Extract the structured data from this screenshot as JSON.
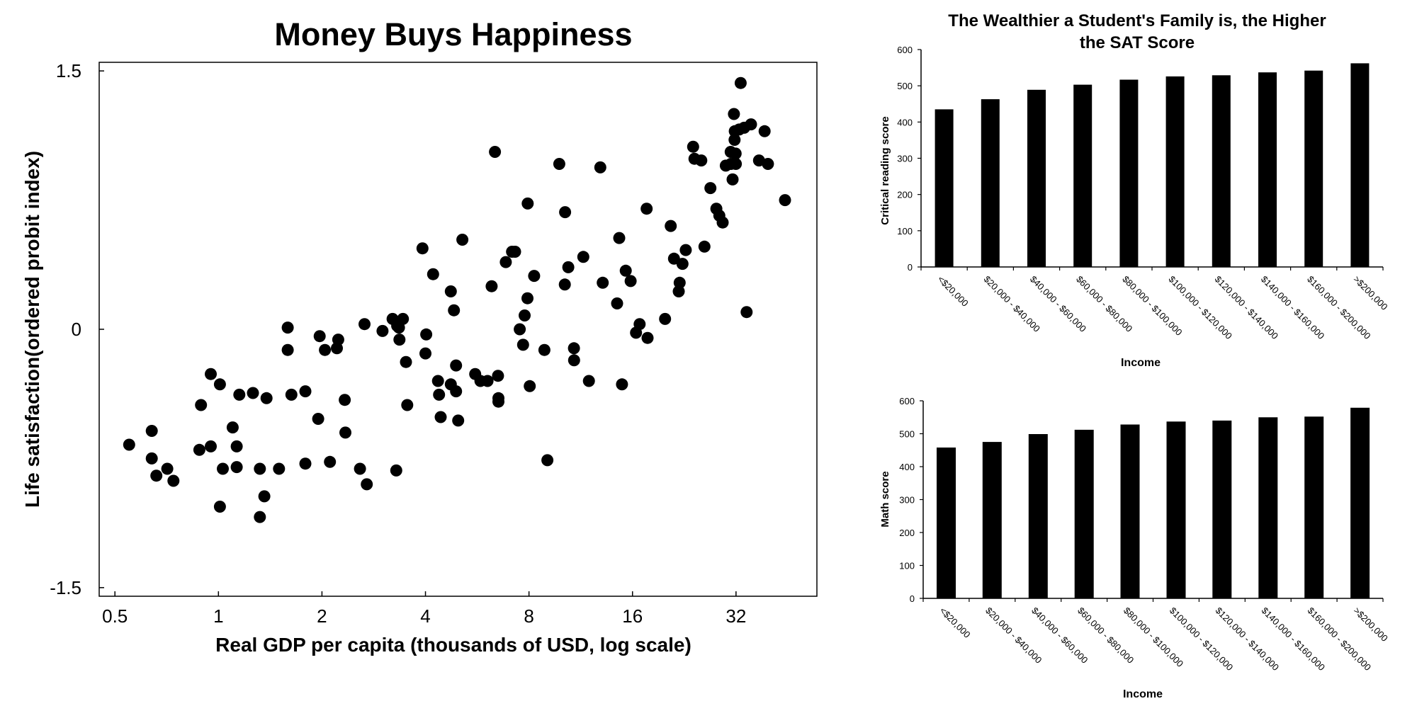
{
  "chart_data": [
    {
      "type": "scatter",
      "title": "Money Buys Happiness",
      "xlabel": "Real GDP per capita (thousands of USD, log scale)",
      "ylabel": "Life satisfaction(ordered probit index)",
      "x_scale": "log2",
      "xlim": [
        0.45,
        55
      ],
      "ylim": [
        -1.55,
        1.55
      ],
      "x_ticks": [
        0.5,
        1,
        2,
        4,
        8,
        16,
        32
      ],
      "x_tick_labels": [
        "0.5",
        "1",
        "2",
        "4",
        "8",
        "16",
        "32"
      ],
      "y_ticks": [
        1.5,
        0,
        -1.5
      ],
      "y_tick_labels": [
        "1.5",
        "0",
        "-1.5"
      ],
      "grid": false,
      "legend": "none",
      "points": [
        [
          0.55,
          -0.67
        ],
        [
          0.64,
          -0.59
        ],
        [
          0.64,
          -0.75
        ],
        [
          0.66,
          -0.85
        ],
        [
          0.71,
          -0.81
        ],
        [
          0.74,
          -0.88
        ],
        [
          0.88,
          -0.7
        ],
        [
          0.89,
          -0.44
        ],
        [
          0.95,
          -0.26
        ],
        [
          0.95,
          -0.68
        ],
        [
          1.01,
          -0.32
        ],
        [
          1.01,
          -1.03
        ],
        [
          1.03,
          -0.81
        ],
        [
          1.1,
          -0.57
        ],
        [
          1.13,
          -0.68
        ],
        [
          1.13,
          -0.8
        ],
        [
          1.15,
          -0.38
        ],
        [
          1.26,
          -0.37
        ],
        [
          1.32,
          -1.09
        ],
        [
          1.32,
          -0.81
        ],
        [
          1.36,
          -0.97
        ],
        [
          1.38,
          -0.4
        ],
        [
          1.5,
          -0.81
        ],
        [
          1.59,
          -0.12
        ],
        [
          1.59,
          0.01
        ],
        [
          1.63,
          -0.38
        ],
        [
          1.79,
          -0.36
        ],
        [
          1.79,
          -0.78
        ],
        [
          1.95,
          -0.52
        ],
        [
          1.97,
          -0.04
        ],
        [
          2.04,
          -0.12
        ],
        [
          2.11,
          -0.77
        ],
        [
          2.21,
          -0.11
        ],
        [
          2.23,
          -0.06
        ],
        [
          2.33,
          -0.41
        ],
        [
          2.34,
          -0.6
        ],
        [
          2.58,
          -0.81
        ],
        [
          2.66,
          0.03
        ],
        [
          2.7,
          -0.9
        ],
        [
          3.0,
          -0.01
        ],
        [
          3.21,
          0.06
        ],
        [
          3.29,
          -0.82
        ],
        [
          3.31,
          0.02
        ],
        [
          3.35,
          0.01
        ],
        [
          3.36,
          -0.06
        ],
        [
          3.44,
          0.06
        ],
        [
          3.51,
          -0.19
        ],
        [
          3.54,
          -0.44
        ],
        [
          3.92,
          0.47
        ],
        [
          4.0,
          -0.14
        ],
        [
          4.02,
          -0.03
        ],
        [
          4.21,
          0.32
        ],
        [
          4.35,
          -0.3
        ],
        [
          4.38,
          -0.38
        ],
        [
          4.43,
          -0.51
        ],
        [
          4.74,
          0.22
        ],
        [
          4.74,
          -0.32
        ],
        [
          4.84,
          0.11
        ],
        [
          4.91,
          -0.21
        ],
        [
          4.91,
          -0.36
        ],
        [
          4.98,
          -0.53
        ],
        [
          5.12,
          0.52
        ],
        [
          5.58,
          -0.26
        ],
        [
          5.78,
          -0.3
        ],
        [
          6.06,
          -0.3
        ],
        [
          6.23,
          0.25
        ],
        [
          6.37,
          1.03
        ],
        [
          6.5,
          -0.27
        ],
        [
          6.52,
          -0.4
        ],
        [
          6.52,
          -0.42
        ],
        [
          6.85,
          0.39
        ],
        [
          7.14,
          0.45
        ],
        [
          7.29,
          0.45
        ],
        [
          7.52,
          0.0
        ],
        [
          7.69,
          -0.09
        ],
        [
          7.77,
          0.08
        ],
        [
          7.92,
          0.18
        ],
        [
          7.93,
          0.73
        ],
        [
          8.04,
          -0.33
        ],
        [
          8.28,
          0.31
        ],
        [
          8.87,
          -0.12
        ],
        [
          9.05,
          -0.76
        ],
        [
          9.8,
          0.96
        ],
        [
          10.17,
          0.26
        ],
        [
          10.19,
          0.68
        ],
        [
          10.41,
          0.36
        ],
        [
          10.82,
          -0.18
        ],
        [
          10.81,
          -0.11
        ],
        [
          11.51,
          0.42
        ],
        [
          11.95,
          -0.3
        ],
        [
          12.9,
          0.94
        ],
        [
          13.11,
          0.27
        ],
        [
          14.43,
          0.15
        ],
        [
          14.64,
          0.53
        ],
        [
          14.91,
          -0.32
        ],
        [
          15.29,
          0.34
        ],
        [
          15.8,
          0.28
        ],
        [
          16.38,
          -0.02
        ],
        [
          16.78,
          0.03
        ],
        [
          17.7,
          -0.05
        ],
        [
          17.59,
          0.7
        ],
        [
          19.9,
          0.06
        ],
        [
          20.67,
          0.6
        ],
        [
          21.12,
          0.41
        ],
        [
          21.81,
          0.22
        ],
        [
          21.94,
          0.27
        ],
        [
          22.36,
          0.38
        ],
        [
          22.86,
          0.46
        ],
        [
          24.01,
          1.06
        ],
        [
          24.23,
          0.99
        ],
        [
          25.36,
          0.98
        ],
        [
          25.9,
          0.48
        ],
        [
          26.96,
          0.82
        ],
        [
          28.06,
          0.7
        ],
        [
          28.62,
          0.66
        ],
        [
          29.27,
          0.62
        ],
        [
          29.88,
          0.95
        ],
        [
          30.87,
          1.03
        ],
        [
          30.93,
          0.96
        ],
        [
          31.27,
          0.87
        ],
        [
          31.55,
          1.25
        ],
        [
          31.69,
          1.1
        ],
        [
          31.73,
          1.15
        ],
        [
          31.92,
          1.02
        ],
        [
          31.97,
          0.96
        ],
        [
          32.69,
          1.16
        ],
        [
          33.01,
          1.43
        ],
        [
          33.81,
          1.17
        ],
        [
          34.35,
          0.1
        ],
        [
          35.38,
          1.19
        ],
        [
          37.32,
          0.98
        ],
        [
          38.75,
          1.15
        ],
        [
          39.62,
          0.96
        ],
        [
          44.43,
          0.75
        ]
      ]
    },
    {
      "type": "bar",
      "title": "The Wealthier a Student's Family is, the Higher the SAT Score",
      "title_lines": [
        "The Wealthier a Student's Family is, the Higher",
        "the SAT Score"
      ],
      "xlabel": "Income",
      "ylabel": "Critical reading score",
      "ylim": [
        0,
        600
      ],
      "y_ticks": [
        0,
        100,
        200,
        300,
        400,
        500,
        600
      ],
      "grid": false,
      "legend": "none",
      "categories": [
        "<$20,000",
        "$20,000 - $40,000",
        "$40,000 - $60,000",
        "$60,000 - $80,000",
        "$80,000 - $100,000",
        "$100,000 - $120,000",
        "$120,000 - $140,000",
        "$140,000 - $160,000",
        "$160,000 - $200,000",
        ">$200,000"
      ],
      "values": [
        435,
        463,
        489,
        503,
        517,
        526,
        529,
        537,
        542,
        562
      ]
    },
    {
      "type": "bar",
      "title": "",
      "xlabel": "Income",
      "ylabel": "Math score",
      "ylim": [
        0,
        600
      ],
      "y_ticks": [
        0,
        100,
        200,
        300,
        400,
        500,
        600
      ],
      "grid": false,
      "legend": "none",
      "categories": [
        "<$20,000",
        "$20,000 - $40,000",
        "$40,000 - $60,000",
        "$60,000 - $80,000",
        "$80,000 - $100,000",
        "$100,000 - $120,000",
        "$120,000 - $140,000",
        "$140,000 - $160,000",
        "$160,000 - $200,000",
        ">$200,000"
      ],
      "values": [
        458,
        475,
        499,
        512,
        528,
        537,
        540,
        550,
        552,
        579
      ]
    }
  ],
  "colors": {
    "marks": "#000000",
    "background": "#ffffff"
  }
}
